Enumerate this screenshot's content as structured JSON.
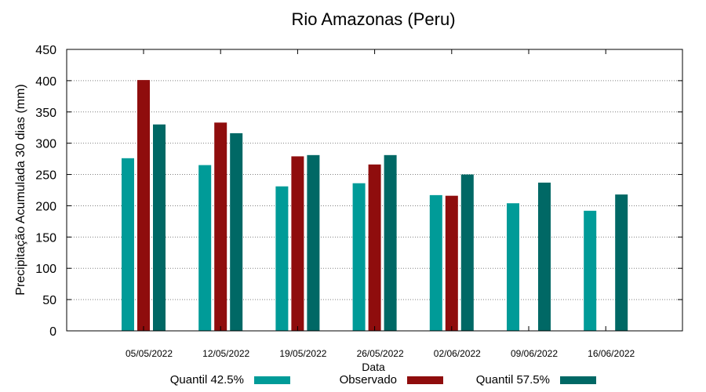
{
  "chart_data": {
    "type": "bar",
    "title": "Rio Amazonas (Peru)",
    "xlabel": "Data",
    "ylabel": "Precipitação Acumulada 30 dias (mm)",
    "ylim": [
      0,
      450
    ],
    "yticks": [
      0,
      50,
      100,
      150,
      200,
      250,
      300,
      350,
      400,
      450
    ],
    "grid": true,
    "legend_position": "bottom",
    "categories": [
      "05/05/2022",
      "12/05/2022",
      "19/05/2022",
      "26/05/2022",
      "02/06/2022",
      "09/06/2022",
      "16/06/2022"
    ],
    "series": [
      {
        "name": "Quantil 42.5%",
        "color": "#009b98",
        "values": [
          276,
          265,
          231,
          236,
          217,
          204,
          192
        ]
      },
      {
        "name": "Observado",
        "color": "#8f0d0d",
        "values": [
          401,
          333,
          279,
          266,
          216,
          null,
          null
        ]
      },
      {
        "name": "Quantil 57.5%",
        "color": "#006865",
        "values": [
          330,
          316,
          281,
          281,
          250,
          237,
          218
        ]
      }
    ]
  }
}
